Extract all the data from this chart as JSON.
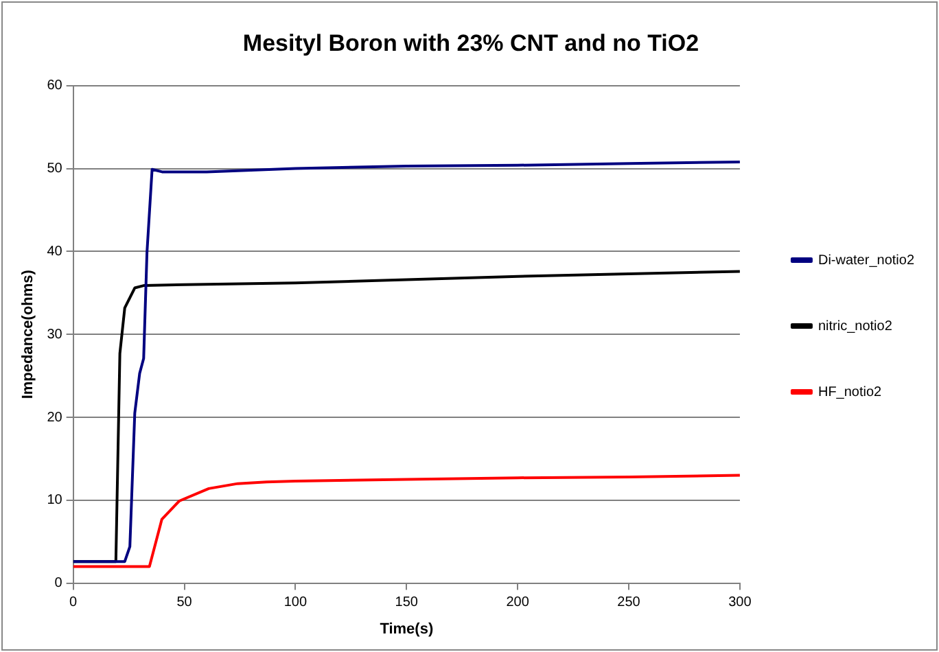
{
  "chart_data": {
    "type": "line",
    "title": "Mesityl Boron with 23% CNT and no TiO2",
    "xlabel": "Time(s)",
    "ylabel": "Impedance(ohms)",
    "xlim": [
      0,
      300
    ],
    "xticks": [
      0,
      50,
      100,
      150,
      200,
      250,
      300
    ],
    "ylim": [
      0,
      60
    ],
    "yticks": [
      0,
      10,
      20,
      30,
      40,
      50,
      60
    ],
    "grid": "y",
    "legend": "right",
    "marker": "none",
    "line_style": "solid",
    "series": [
      {
        "name": "Di-water_notio2",
        "color": "#000080",
        "x": [
          0,
          10,
          20,
          23.2,
          25.5,
          27.7,
          29.9,
          31.7,
          33.2,
          35.5,
          40,
          50,
          60,
          70,
          100,
          150,
          200,
          250,
          300
        ],
        "values": [
          2.6,
          2.6,
          2.6,
          2.6,
          4.4,
          20.5,
          25.3,
          27.1,
          39.9,
          49.9,
          49.6,
          49.6,
          49.6,
          49.7,
          50,
          50.3,
          50.4,
          50.6,
          50.8
        ]
      },
      {
        "name": "nitric_notio2",
        "color": "#000000",
        "x": [
          0,
          10,
          19.2,
          21,
          23.2,
          27.7,
          32,
          50,
          100,
          150,
          200,
          250,
          300
        ],
        "values": [
          2.6,
          2.6,
          2.6,
          27.7,
          33.2,
          35.6,
          35.9,
          36,
          36.2,
          36.6,
          37,
          37.3,
          37.6
        ]
      },
      {
        "name": "HF_notio2",
        "color": "#ff0000",
        "x": [
          0,
          10,
          20,
          34.3,
          39.9,
          47.7,
          61,
          74,
          87,
          100,
          150,
          200,
          250,
          300
        ],
        "values": [
          2,
          2,
          2,
          2,
          7.7,
          9.9,
          11.4,
          12,
          12.2,
          12.3,
          12.5,
          12.7,
          12.8,
          13
        ]
      }
    ]
  }
}
